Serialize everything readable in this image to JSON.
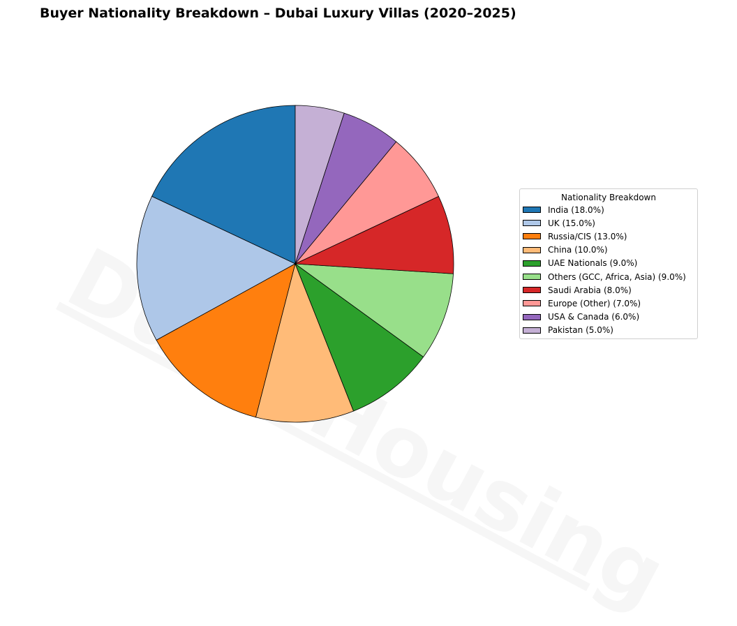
{
  "title": "Buyer Nationality Breakdown – Dubai Luxury Villas (2020–2025)",
  "watermark": "DubaiHousing",
  "chart_data": {
    "type": "pie",
    "title": "Buyer Nationality Breakdown – Dubai Luxury Villas (2020–2025)",
    "legend_title": "Nationality Breakdown",
    "legend_position": "right",
    "start_angle": "top, counter-clockwise",
    "slices": [
      {
        "label": "India (18.0%)",
        "value": 18.0,
        "color": "#1f77b4"
      },
      {
        "label": "UK (15.0%)",
        "value": 15.0,
        "color": "#aec7e8"
      },
      {
        "label": "Russia/CIS (13.0%)",
        "value": 13.0,
        "color": "#ff7f0e"
      },
      {
        "label": "China (10.0%)",
        "value": 10.0,
        "color": "#ffbb78"
      },
      {
        "label": "UAE Nationals (9.0%)",
        "value": 9.0,
        "color": "#2ca02c"
      },
      {
        "label": "Others (GCC, Africa, Asia) (9.0%)",
        "value": 9.0,
        "color": "#98df8a"
      },
      {
        "label": "Saudi Arabia (8.0%)",
        "value": 8.0,
        "color": "#d62728"
      },
      {
        "label": "Europe (Other) (7.0%)",
        "value": 7.0,
        "color": "#ff9896"
      },
      {
        "label": "USA & Canada (6.0%)",
        "value": 6.0,
        "color": "#9467bd"
      },
      {
        "label": "Pakistan (5.0%)",
        "value": 5.0,
        "color": "#c5b0d5"
      }
    ]
  }
}
